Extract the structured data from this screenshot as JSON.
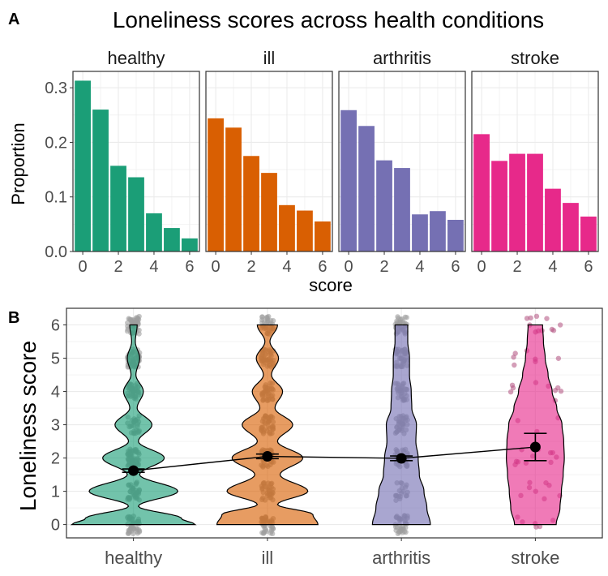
{
  "panel_a_label": "A",
  "panel_b_label": "B",
  "chart_data": [
    {
      "type": "bar",
      "title": "Loneliness scores across health conditions",
      "xlabel": "score",
      "ylabel": "Proportion",
      "ylim": [
        0,
        0.33
      ],
      "yticks": [
        0.0,
        0.1,
        0.2,
        0.3
      ],
      "ytick_labels": [
        "0.0",
        "0.1",
        "0.2",
        "0.3"
      ],
      "xlim": [
        -0.55,
        6.55
      ],
      "xticks": [
        0,
        2,
        4,
        6
      ],
      "xtick_labels": [
        "0",
        "2",
        "4",
        "6"
      ],
      "grid": true,
      "categories": [
        0,
        1,
        2,
        3,
        4,
        5,
        6
      ],
      "series": [
        {
          "name": "healthy",
          "color": "#1b9e77",
          "values": [
            0.313,
            0.26,
            0.157,
            0.136,
            0.07,
            0.043,
            0.024
          ]
        },
        {
          "name": "ill",
          "color": "#d95f02",
          "values": [
            0.244,
            0.227,
            0.175,
            0.144,
            0.085,
            0.075,
            0.055
          ]
        },
        {
          "name": "arthritis",
          "color": "#7570b3",
          "values": [
            0.259,
            0.23,
            0.167,
            0.153,
            0.068,
            0.074,
            0.058
          ]
        },
        {
          "name": "stroke",
          "color": "#e7298a",
          "values": [
            0.215,
            0.166,
            0.179,
            0.179,
            0.115,
            0.089,
            0.064
          ]
        }
      ]
    },
    {
      "type": "violin",
      "xlabel": "",
      "ylabel": "Loneliness score",
      "ylim": [
        -0.4,
        6.5
      ],
      "yticks": [
        0,
        1,
        2,
        3,
        4,
        5,
        6
      ],
      "ytick_labels": [
        "0",
        "1",
        "2",
        "3",
        "4",
        "5",
        "6"
      ],
      "grid": true,
      "categories": [
        "healthy",
        "ill",
        "arthritis",
        "stroke"
      ],
      "means": [
        1.62,
        2.05,
        1.99,
        2.33
      ],
      "ci_lower": [
        1.57,
        1.98,
        1.92,
        1.92
      ],
      "ci_upper": [
        1.67,
        2.12,
        2.06,
        2.74
      ],
      "colors": [
        "#1b9e77",
        "#d95f02",
        "#7570b3",
        "#e7298a"
      ],
      "violin_max_half_width": [
        1.0,
        0.82,
        0.47,
        0.47
      ],
      "violin_density_profile": [
        [
          [
            0,
            1.0
          ],
          [
            0.18,
            0.78
          ],
          [
            0.55,
            0.08
          ],
          [
            1.0,
            0.72
          ],
          [
            1.5,
            0.1
          ],
          [
            2.0,
            0.5
          ],
          [
            2.5,
            0.08
          ],
          [
            3.0,
            0.3
          ],
          [
            3.5,
            0.06
          ],
          [
            4.0,
            0.16
          ],
          [
            4.5,
            0.04
          ],
          [
            5.0,
            0.1
          ],
          [
            5.5,
            0.03
          ],
          [
            6.0,
            0.06
          ]
        ],
        [
          [
            0,
            1.0
          ],
          [
            0.3,
            0.9
          ],
          [
            0.6,
            0.2
          ],
          [
            1.0,
            0.8
          ],
          [
            1.5,
            0.25
          ],
          [
            2.0,
            0.7
          ],
          [
            2.5,
            0.2
          ],
          [
            3.0,
            0.5
          ],
          [
            3.5,
            0.15
          ],
          [
            4.0,
            0.3
          ],
          [
            4.5,
            0.08
          ],
          [
            5.0,
            0.22
          ],
          [
            5.5,
            0.05
          ],
          [
            6.0,
            0.2
          ]
        ],
        [
          [
            0,
            1.0
          ],
          [
            0.5,
            0.88
          ],
          [
            1.0,
            0.78
          ],
          [
            1.5,
            0.62
          ],
          [
            2.0,
            0.58
          ],
          [
            2.5,
            0.5
          ],
          [
            3.0,
            0.52
          ],
          [
            3.5,
            0.36
          ],
          [
            4.0,
            0.34
          ],
          [
            4.5,
            0.28
          ],
          [
            5.0,
            0.28
          ],
          [
            5.5,
            0.22
          ],
          [
            6.0,
            0.22
          ]
        ],
        [
          [
            0,
            0.72
          ],
          [
            0.5,
            0.85
          ],
          [
            1.0,
            0.9
          ],
          [
            1.5,
            0.96
          ],
          [
            2.0,
            1.0
          ],
          [
            2.5,
            0.98
          ],
          [
            3.0,
            0.92
          ],
          [
            3.5,
            0.74
          ],
          [
            4.0,
            0.58
          ],
          [
            4.5,
            0.44
          ],
          [
            5.0,
            0.34
          ],
          [
            5.5,
            0.28
          ],
          [
            6.0,
            0.25
          ]
        ]
      ],
      "jitter_point_density": [
        300,
        260,
        220,
        55
      ]
    }
  ]
}
